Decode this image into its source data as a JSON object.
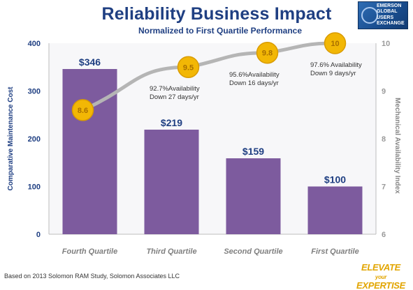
{
  "header": {
    "title": "Reliability Business Impact",
    "subtitle": "Normalized to First Quartile Performance"
  },
  "logo": {
    "lines": [
      "EMERSON",
      "GLOBAL",
      "USERS",
      "EXCHANGE"
    ]
  },
  "footnote": "Based on 2013 Solomon RAM Study, Solomon Associates LLC",
  "brand": {
    "line1": "ELEVATE",
    "line1_small": "your",
    "line2": "EXPERTISE"
  },
  "colors": {
    "bar": "#7d5b9e",
    "title": "#1f3f82",
    "circle": "#f2b705",
    "line": "#b5b5b5"
  },
  "chart_data": {
    "type": "bar",
    "categories": [
      "Fourth Quartile",
      "Third Quartile",
      "Second Quartile",
      "First Quartile"
    ],
    "series": [
      {
        "type": "bar",
        "axis": "left",
        "values": [
          346,
          219,
          159,
          100
        ],
        "data_labels": [
          "$346",
          "$219",
          "$159",
          "$100"
        ]
      },
      {
        "type": "line",
        "axis": "right",
        "values": [
          8.6,
          9.5,
          9.8,
          10
        ],
        "data_labels": [
          "8.6",
          "9.5",
          "9.8",
          "10"
        ]
      }
    ],
    "ylabel": "Comparative Maintenance Cost",
    "ylim": [
      0,
      400
    ],
    "yticks": [
      "0",
      "100",
      "200",
      "300",
      "400"
    ],
    "y2label": "Mechanical Availability Index",
    "y2lim": [
      6,
      10
    ],
    "y2ticks": [
      "6",
      "7",
      "8",
      "9",
      "10"
    ],
    "annotations": [
      {
        "lines": [
          "92.7%Availability",
          "Down 27 days/yr"
        ],
        "category": "Third Quartile"
      },
      {
        "lines": [
          "95.6%Availability",
          "Down 16 days/yr"
        ],
        "category": "Second Quartile"
      },
      {
        "lines": [
          "97.6% Availability",
          "Down 9 days/yr"
        ],
        "category": "First Quartile"
      }
    ]
  }
}
